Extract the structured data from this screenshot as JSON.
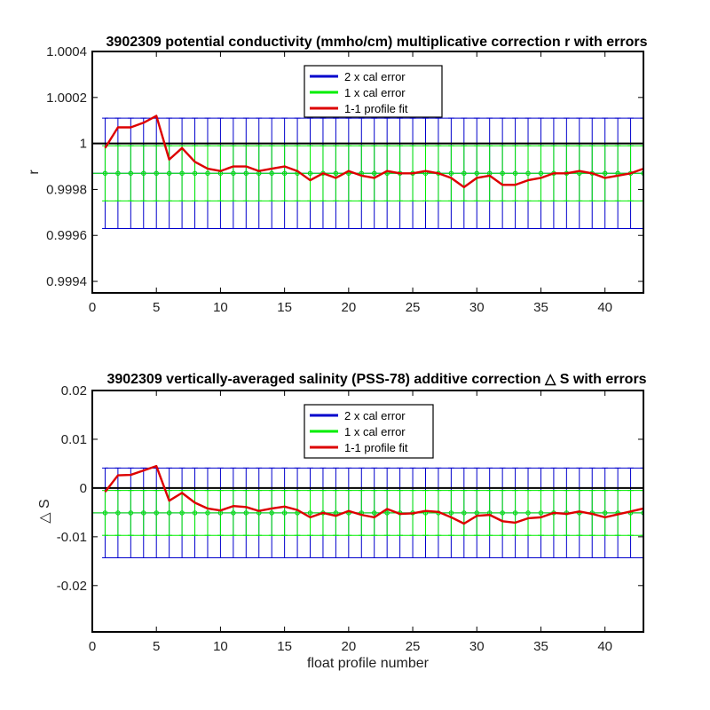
{
  "chart_data": [
    {
      "type": "line",
      "title": "3902309 potential conductivity (mmho/cm) multiplicative correction r with errors",
      "xlabel": "",
      "ylabel": "r",
      "xlim": [
        0,
        43
      ],
      "ylim": [
        0.99935,
        1.0004
      ],
      "x_ticks": [
        0,
        5,
        10,
        15,
        20,
        25,
        30,
        35,
        40
      ],
      "y_ticks": [
        0.9994,
        0.9996,
        0.9998,
        1,
        1.0002,
        1.0004
      ],
      "y_tick_labels": [
        "0.9994",
        "0.9996",
        "0.9998",
        "1",
        "1.0002",
        "1.0004"
      ],
      "x": [
        1,
        2,
        3,
        4,
        5,
        6,
        7,
        8,
        9,
        10,
        11,
        12,
        13,
        14,
        15,
        16,
        17,
        18,
        19,
        20,
        21,
        22,
        23,
        24,
        25,
        26,
        27,
        28,
        29,
        30,
        31,
        32,
        33,
        34,
        35,
        36,
        37,
        38,
        39,
        40,
        41,
        42,
        43
      ],
      "reference_line": 1,
      "series": [
        {
          "name": "2 x cal error",
          "color": "#0000cc",
          "kind": "errorbar",
          "center": 0.99987,
          "half_width": 0.00024
        },
        {
          "name": "1 x cal error",
          "color": "#00ee00",
          "kind": "errorbar",
          "center": 0.99987,
          "half_width": 0.00012
        },
        {
          "name": "1-1 profile fit",
          "color": "#dd0000",
          "kind": "line",
          "values": [
            0.99998,
            1.00007,
            1.00007,
            1.00009,
            1.00012,
            0.99993,
            0.99998,
            0.99992,
            0.99989,
            0.99988,
            0.9999,
            0.9999,
            0.99988,
            0.99989,
            0.9999,
            0.99988,
            0.99984,
            0.99987,
            0.99985,
            0.99988,
            0.99986,
            0.99985,
            0.99988,
            0.99987,
            0.99987,
            0.99988,
            0.99987,
            0.99985,
            0.99981,
            0.99985,
            0.99986,
            0.99982,
            0.99982,
            0.99984,
            0.99985,
            0.99987,
            0.99987,
            0.99988,
            0.99987,
            0.99985,
            0.99986,
            0.99987,
            0.99989
          ]
        }
      ],
      "legend": "top-center",
      "grid": false
    },
    {
      "type": "line",
      "title": "3902309 vertically-averaged salinity (PSS-78) additive correction △ S with errors",
      "xlabel": "float profile number",
      "ylabel": "△ S",
      "xlim": [
        0,
        43
      ],
      "ylim": [
        -0.0295,
        0.02
      ],
      "x_ticks": [
        0,
        5,
        10,
        15,
        20,
        25,
        30,
        35,
        40
      ],
      "y_ticks": [
        -0.02,
        -0.01,
        0,
        0.01,
        0.02
      ],
      "y_tick_labels": [
        "-0.02",
        "-0.01",
        "0",
        "0.01",
        "0.02"
      ],
      "x": [
        1,
        2,
        3,
        4,
        5,
        6,
        7,
        8,
        9,
        10,
        11,
        12,
        13,
        14,
        15,
        16,
        17,
        18,
        19,
        20,
        21,
        22,
        23,
        24,
        25,
        26,
        27,
        28,
        29,
        30,
        31,
        32,
        33,
        34,
        35,
        36,
        37,
        38,
        39,
        40,
        41,
        42,
        43
      ],
      "reference_line": 0,
      "series": [
        {
          "name": "2 x cal error",
          "color": "#0000cc",
          "kind": "errorbar",
          "center": -0.0051,
          "half_width": 0.0092
        },
        {
          "name": "1 x cal error",
          "color": "#00ee00",
          "kind": "errorbar",
          "center": -0.0051,
          "half_width": 0.0046
        },
        {
          "name": "1-1 profile fit",
          "color": "#dd0000",
          "kind": "line",
          "values": [
            -0.0008,
            0.0026,
            0.0027,
            0.0036,
            0.0045,
            -0.0026,
            -0.001,
            -0.003,
            -0.0042,
            -0.0046,
            -0.0037,
            -0.0039,
            -0.0047,
            -0.0042,
            -0.0038,
            -0.0045,
            -0.006,
            -0.0051,
            -0.0057,
            -0.0047,
            -0.0055,
            -0.006,
            -0.0043,
            -0.0053,
            -0.0052,
            -0.0047,
            -0.0049,
            -0.006,
            -0.0073,
            -0.0057,
            -0.0055,
            -0.0068,
            -0.0071,
            -0.0062,
            -0.006,
            -0.0051,
            -0.0053,
            -0.0048,
            -0.0053,
            -0.006,
            -0.0054,
            -0.0048,
            -0.0042
          ]
        }
      ],
      "legend": "top-center",
      "grid": false
    }
  ]
}
